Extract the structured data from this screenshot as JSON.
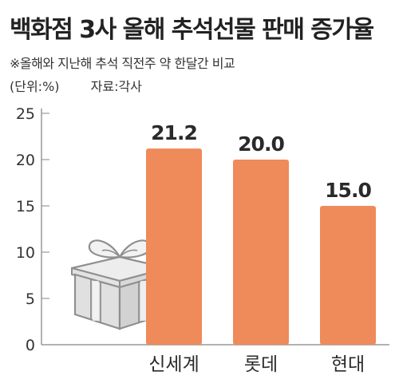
{
  "header": {
    "title": "백화점 3사 올해 추석선물 판매 증가율",
    "note": "※올해와 지난해 추석 직전주 약 한달간 비교",
    "unit": "(단위:%)",
    "source": "자료:각사"
  },
  "icons": {
    "gift": "gift-box-icon"
  },
  "colors": {
    "bar": "#ef8a5a",
    "axis": "#999999",
    "grid": "#d6d6d6"
  },
  "chart_data": {
    "type": "bar",
    "categories": [
      "신세계",
      "롯데",
      "현대"
    ],
    "values": [
      21.2,
      20.0,
      15.0
    ],
    "value_labels": [
      "21.2",
      "20.0",
      "15.0"
    ],
    "ylim": [
      0,
      25
    ],
    "yticks": [
      "0",
      "5",
      "10",
      "15",
      "20",
      "25"
    ],
    "grid": true
  }
}
